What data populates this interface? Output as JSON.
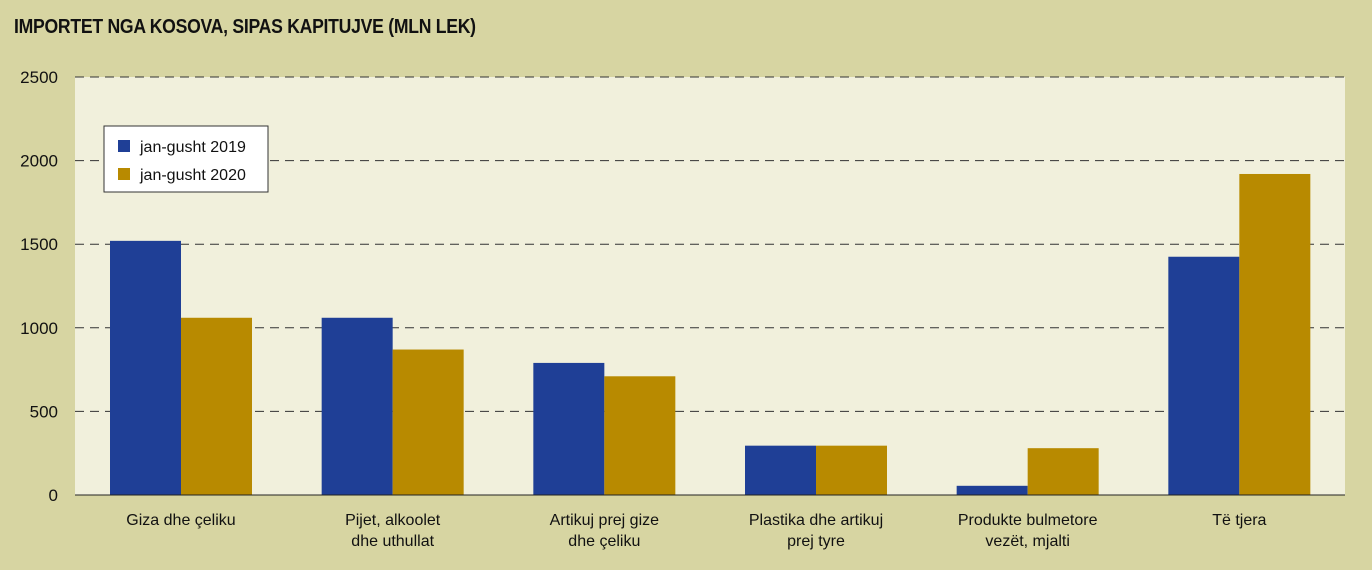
{
  "chart_data": {
    "type": "bar",
    "title": "IMPORTET NGA KOSOVA, SIPAS KAPITUJVE (MLN LEK)",
    "xlabel": "",
    "ylabel": "",
    "ylim": [
      0,
      2500
    ],
    "yticks": [
      0,
      500,
      1000,
      1500,
      2000,
      2500
    ],
    "grid": true,
    "legend_position": "top-left",
    "categories": [
      [
        "Giza dhe çeliku"
      ],
      [
        "Pijet, alkoolet",
        "dhe uthullat"
      ],
      [
        "Artikuj prej gize",
        "dhe çeliku"
      ],
      [
        "Plastika dhe artikuj",
        "prej tyre"
      ],
      [
        "Produkte bulmetore",
        "vezët, mjalti"
      ],
      [
        "Të tjera"
      ]
    ],
    "series": [
      {
        "name": "jan-gusht 2019",
        "color": "#1f3f96",
        "values": [
          1520,
          1060,
          790,
          295,
          55,
          1425
        ]
      },
      {
        "name": "jan-gusht 2020",
        "color": "#b88a00",
        "values": [
          1060,
          870,
          710,
          295,
          280,
          1920
        ]
      }
    ],
    "colors": {
      "background": "#d7d5a2",
      "plot_background": "#f1f0dc",
      "grid": "#333333"
    }
  }
}
